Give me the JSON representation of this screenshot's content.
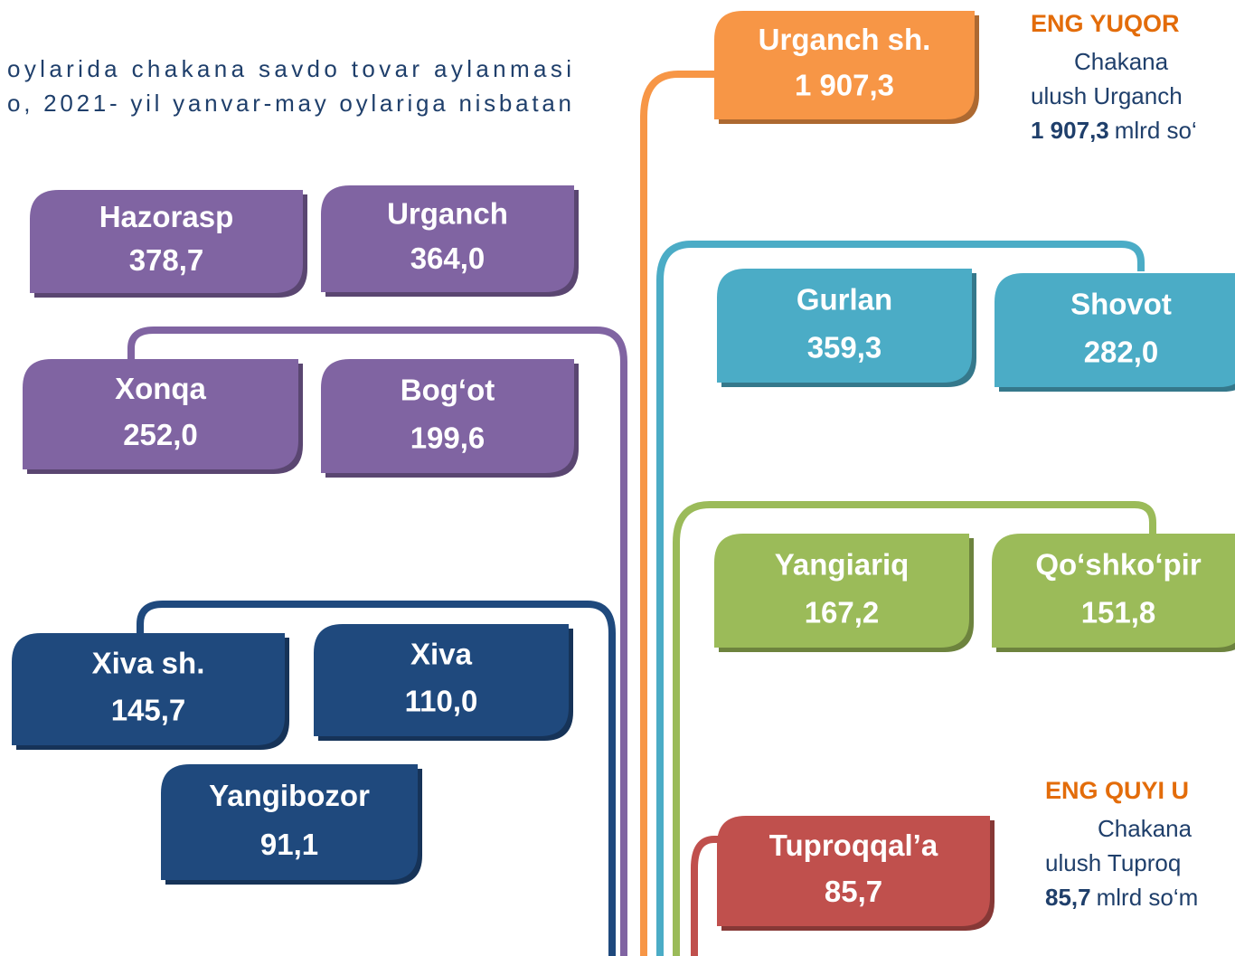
{
  "intro": [
    "oylarida chakana savdo tovar aylanmasi",
    "o, 2021- yil yanvar-may oylariga nisbatan"
  ],
  "boxes": [
    {
      "name": "Urganch sh.",
      "value": "1 907,3",
      "color": "#f79646"
    },
    {
      "name": "Hazorasp",
      "value": "378,7",
      "color": "#8064a2"
    },
    {
      "name": "Urganch",
      "value": "364,0",
      "color": "#8064a2"
    },
    {
      "name": "Gurlan",
      "value": "359,3",
      "color": "#4bacc6"
    },
    {
      "name": "Shovot",
      "value": "282,0",
      "color": "#4bacc6"
    },
    {
      "name": "Xonqa",
      "value": "252,0",
      "color": "#8064a2"
    },
    {
      "name": "Bog‘ot",
      "value": "199,6",
      "color": "#8064a2"
    },
    {
      "name": "Yangiariq",
      "value": "167,2",
      "color": "#9bbb59"
    },
    {
      "name": "Qo‘shko‘pir",
      "value": "151,8",
      "color": "#9bbb59"
    },
    {
      "name": "Xiva sh.",
      "value": "145,7",
      "color": "#1f497d"
    },
    {
      "name": "Xiva",
      "value": "110,0",
      "color": "#1f497d"
    },
    {
      "name": "Yangibozor",
      "value": "91,1",
      "color": "#1f497d"
    },
    {
      "name": "Tuproqqal’a",
      "value": "85,7",
      "color": "#c0504d"
    }
  ],
  "top": {
    "title": "ENG YUQOR",
    "lines": [
      "Chakana",
      "ulush  Urganch"
    ],
    "value": "1 907,3",
    "unit": "mlrd so‘"
  },
  "bottom": {
    "title": "ENG QUYI U",
    "lines": [
      "Chakana",
      "ulush   Tuproq"
    ],
    "value": "85,7",
    "unit": "mlrd  so‘m"
  }
}
